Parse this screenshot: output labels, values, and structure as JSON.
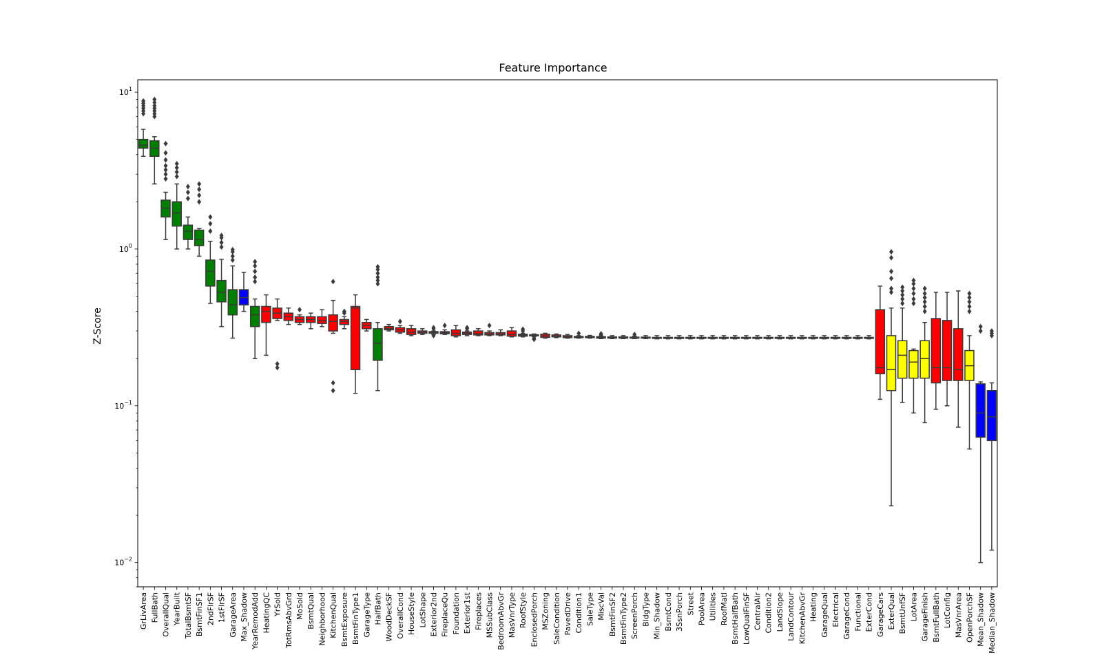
{
  "chart_data": {
    "type": "box",
    "title": "Feature Importance",
    "xlabel": "",
    "ylabel": "Z-Score",
    "yscale": "log",
    "ylim": [
      0.007,
      12
    ],
    "yticks": [
      {
        "value": 10,
        "base": "10",
        "exp": "1"
      },
      {
        "value": 1,
        "base": "10",
        "exp": "0"
      },
      {
        "value": 0.1,
        "base": "10",
        "exp": "−1"
      },
      {
        "value": 0.01,
        "base": "10",
        "exp": "−2"
      }
    ],
    "legend": "none",
    "colors": {
      "green": "#008000",
      "blue": "#0000ff",
      "red": "#ff0000",
      "yellow": "#ffff00"
    },
    "boxes": [
      {
        "name": "GrLivArea",
        "color": "green",
        "wlo": 3.9,
        "q1": 4.4,
        "med": 4.6,
        "q3": 5.0,
        "whi": 5.8,
        "fliers": [
          7.3,
          7.6,
          7.9,
          8.2,
          8.5,
          8.8
        ]
      },
      {
        "name": "FullBath",
        "color": "green",
        "wlo": 2.6,
        "q1": 3.9,
        "med": 4.4,
        "q3": 4.9,
        "whi": 5.2,
        "fliers": [
          7.0,
          7.3,
          7.6,
          7.9,
          8.2,
          8.6,
          9.0
        ]
      },
      {
        "name": "OverallQual",
        "color": "green",
        "wlo": 1.15,
        "q1": 1.6,
        "med": 1.82,
        "q3": 2.05,
        "whi": 2.3,
        "fliers": [
          2.8,
          3.0,
          3.2,
          3.4,
          3.7,
          4.1,
          4.7
        ]
      },
      {
        "name": "YearBuilt",
        "color": "green",
        "wlo": 1.0,
        "q1": 1.4,
        "med": 1.7,
        "q3": 2.0,
        "whi": 2.6,
        "fliers": [
          2.9,
          3.1,
          3.3,
          3.5
        ]
      },
      {
        "name": "TotalBsmtSF",
        "color": "green",
        "wlo": 1.0,
        "q1": 1.15,
        "med": 1.3,
        "q3": 1.42,
        "whi": 1.6,
        "fliers": [
          2.1,
          2.3,
          2.5
        ]
      },
      {
        "name": "BsmtFinSF1",
        "color": "green",
        "wlo": 0.9,
        "q1": 1.05,
        "med": 1.15,
        "q3": 1.32,
        "whi": 1.35,
        "fliers": [
          2.0,
          2.2,
          2.4,
          2.6
        ]
      },
      {
        "name": "2ndFlrSF",
        "color": "green",
        "wlo": 0.45,
        "q1": 0.58,
        "med": 0.72,
        "q3": 0.85,
        "whi": 1.12,
        "fliers": [
          1.3,
          1.45,
          1.6
        ]
      },
      {
        "name": "1stFlrSF",
        "color": "green",
        "wlo": 0.32,
        "q1": 0.46,
        "med": 0.53,
        "q3": 0.63,
        "whi": 0.86,
        "fliers": [
          1.03,
          1.1,
          1.18,
          1.22
        ]
      },
      {
        "name": "GarageArea",
        "color": "green",
        "wlo": 0.27,
        "q1": 0.38,
        "med": 0.44,
        "q3": 0.55,
        "whi": 0.78,
        "fliers": [
          0.85,
          0.9,
          0.96,
          0.99
        ]
      },
      {
        "name": "Max_Shadow",
        "color": "blue",
        "wlo": 0.4,
        "q1": 0.44,
        "med": 0.49,
        "q3": 0.55,
        "whi": 0.71,
        "fliers": []
      },
      {
        "name": "YearRemodAdd",
        "color": "green",
        "wlo": 0.2,
        "q1": 0.32,
        "med": 0.38,
        "q3": 0.43,
        "whi": 0.48,
        "fliers": [
          0.62,
          0.66,
          0.72,
          0.78,
          0.83
        ]
      },
      {
        "name": "HeatingQC",
        "color": "red",
        "wlo": 0.21,
        "q1": 0.34,
        "med": 0.4,
        "q3": 0.43,
        "whi": 0.51,
        "fliers": []
      },
      {
        "name": "YrSold",
        "color": "red",
        "wlo": 0.35,
        "q1": 0.36,
        "med": 0.39,
        "q3": 0.42,
        "whi": 0.48,
        "fliers": [
          0.175,
          0.185
        ]
      },
      {
        "name": "TotRmsAbvGrd",
        "color": "red",
        "wlo": 0.33,
        "q1": 0.35,
        "med": 0.37,
        "q3": 0.39,
        "whi": 0.42,
        "fliers": []
      },
      {
        "name": "MoSold",
        "color": "red",
        "wlo": 0.33,
        "q1": 0.34,
        "med": 0.355,
        "q3": 0.37,
        "whi": 0.38,
        "fliers": [
          0.41
        ]
      },
      {
        "name": "BsmtQual",
        "color": "red",
        "wlo": 0.31,
        "q1": 0.34,
        "med": 0.355,
        "q3": 0.37,
        "whi": 0.39,
        "fliers": []
      },
      {
        "name": "Neighborhood",
        "color": "red",
        "wlo": 0.32,
        "q1": 0.335,
        "med": 0.35,
        "q3": 0.37,
        "whi": 0.41,
        "fliers": []
      },
      {
        "name": "KitchenQual",
        "color": "red",
        "wlo": 0.29,
        "q1": 0.3,
        "med": 0.345,
        "q3": 0.38,
        "whi": 0.47,
        "fliers": [
          0.125,
          0.14,
          0.62
        ]
      },
      {
        "name": "BsmtExposure",
        "color": "red",
        "wlo": 0.31,
        "q1": 0.33,
        "med": 0.345,
        "q3": 0.355,
        "whi": 0.37,
        "fliers": [
          0.39,
          0.4
        ]
      },
      {
        "name": "BsmtFinType1",
        "color": "red",
        "wlo": 0.12,
        "q1": 0.17,
        "med": 0.42,
        "q3": 0.43,
        "whi": 0.51,
        "fliers": []
      },
      {
        "name": "GarageType",
        "color": "red",
        "wlo": 0.3,
        "q1": 0.31,
        "med": 0.325,
        "q3": 0.34,
        "whi": 0.355,
        "fliers": []
      },
      {
        "name": "HalfBath",
        "color": "green",
        "wlo": 0.125,
        "q1": 0.195,
        "med": 0.25,
        "q3": 0.31,
        "whi": 0.34,
        "fliers": [
          0.6,
          0.63,
          0.66,
          0.7,
          0.74,
          0.77
        ]
      },
      {
        "name": "WoodDeckSF",
        "color": "red",
        "wlo": 0.3,
        "q1": 0.305,
        "med": 0.31,
        "q3": 0.32,
        "whi": 0.33,
        "fliers": []
      },
      {
        "name": "OverallCond",
        "color": "red",
        "wlo": 0.29,
        "q1": 0.295,
        "med": 0.305,
        "q3": 0.315,
        "whi": 0.325,
        "fliers": [
          0.345
        ]
      },
      {
        "name": "HouseStyle",
        "color": "red",
        "wlo": 0.28,
        "q1": 0.285,
        "med": 0.295,
        "q3": 0.31,
        "whi": 0.325,
        "fliers": []
      },
      {
        "name": "LotShape",
        "color": "red",
        "wlo": 0.285,
        "q1": 0.29,
        "med": 0.295,
        "q3": 0.3,
        "whi": 0.31,
        "fliers": []
      },
      {
        "name": "Exterior2nd",
        "color": "red",
        "wlo": 0.285,
        "q1": 0.29,
        "med": 0.293,
        "q3": 0.297,
        "whi": 0.3,
        "fliers": [
          0.28,
          0.31,
          0.315
        ]
      },
      {
        "name": "FireplaceQu",
        "color": "red",
        "wlo": 0.285,
        "q1": 0.288,
        "med": 0.292,
        "q3": 0.297,
        "whi": 0.305,
        "fliers": [
          0.325
        ]
      },
      {
        "name": "Foundation",
        "color": "red",
        "wlo": 0.275,
        "q1": 0.28,
        "med": 0.29,
        "q3": 0.305,
        "whi": 0.325,
        "fliers": []
      },
      {
        "name": "Exterior1st",
        "color": "red",
        "wlo": 0.28,
        "q1": 0.285,
        "med": 0.29,
        "q3": 0.295,
        "whi": 0.3,
        "fliers": [
          0.31,
          0.315
        ]
      },
      {
        "name": "Fireplaces",
        "color": "red",
        "wlo": 0.28,
        "q1": 0.283,
        "med": 0.288,
        "q3": 0.3,
        "whi": 0.31,
        "fliers": []
      },
      {
        "name": "MSSubClass",
        "color": "red",
        "wlo": 0.28,
        "q1": 0.283,
        "med": 0.287,
        "q3": 0.293,
        "whi": 0.3,
        "fliers": [
          0.325
        ]
      },
      {
        "name": "BedroomAbvGr",
        "color": "red",
        "wlo": 0.28,
        "q1": 0.283,
        "med": 0.287,
        "q3": 0.293,
        "whi": 0.305,
        "fliers": []
      },
      {
        "name": "MasVnrType",
        "color": "red",
        "wlo": 0.275,
        "q1": 0.278,
        "med": 0.285,
        "q3": 0.3,
        "whi": 0.315,
        "fliers": []
      },
      {
        "name": "RoofStyle",
        "color": "red",
        "wlo": 0.275,
        "q1": 0.278,
        "med": 0.282,
        "q3": 0.286,
        "whi": 0.29,
        "fliers": [
          0.3,
          0.308
        ]
      },
      {
        "name": "EnclosedPorch",
        "color": "red",
        "wlo": 0.276,
        "q1": 0.279,
        "med": 0.281,
        "q3": 0.284,
        "whi": 0.287,
        "fliers": [
          0.265,
          0.27
        ]
      },
      {
        "name": "MSZoning",
        "color": "red",
        "wlo": 0.27,
        "q1": 0.273,
        "med": 0.279,
        "q3": 0.286,
        "whi": 0.29,
        "fliers": []
      },
      {
        "name": "SaleCondition",
        "color": "red",
        "wlo": 0.272,
        "q1": 0.275,
        "med": 0.278,
        "q3": 0.283,
        "whi": 0.287,
        "fliers": []
      },
      {
        "name": "PavedDrive",
        "color": "red",
        "wlo": 0.27,
        "q1": 0.272,
        "med": 0.275,
        "q3": 0.28,
        "whi": 0.285,
        "fliers": []
      },
      {
        "name": "Condition1",
        "color": "red",
        "wlo": 0.27,
        "q1": 0.272,
        "med": 0.274,
        "q3": 0.277,
        "whi": 0.28,
        "fliers": [
          0.29
        ]
      },
      {
        "name": "SaleType",
        "color": "red",
        "wlo": 0.27,
        "q1": 0.272,
        "med": 0.274,
        "q3": 0.277,
        "whi": 0.281,
        "fliers": []
      },
      {
        "name": "MiscVal",
        "color": "red",
        "wlo": 0.268,
        "q1": 0.27,
        "med": 0.273,
        "q3": 0.276,
        "whi": 0.279,
        "fliers": [
          0.284,
          0.288
        ]
      },
      {
        "name": "BsmtFinSF2",
        "color": "red",
        "wlo": 0.268,
        "q1": 0.27,
        "med": 0.272,
        "q3": 0.275,
        "whi": 0.28,
        "fliers": []
      },
      {
        "name": "BsmtFinType2",
        "color": "red",
        "wlo": 0.268,
        "q1": 0.27,
        "med": 0.272,
        "q3": 0.275,
        "whi": 0.28,
        "fliers": []
      },
      {
        "name": "ScreenPorch",
        "color": "red",
        "wlo": 0.268,
        "q1": 0.27,
        "med": 0.272,
        "q3": 0.274,
        "whi": 0.278,
        "fliers": [
          0.285
        ]
      },
      {
        "name": "BldgType",
        "color": "red",
        "wlo": 0.268,
        "q1": 0.27,
        "med": 0.272,
        "q3": 0.274,
        "whi": 0.28,
        "fliers": []
      },
      {
        "name": "Min_Shadow",
        "color": "blue",
        "wlo": 0.267,
        "q1": 0.269,
        "med": 0.271,
        "q3": 0.273,
        "whi": 0.28,
        "fliers": []
      },
      {
        "name": "BsmtCond",
        "color": "red",
        "wlo": 0.267,
        "q1": 0.269,
        "med": 0.271,
        "q3": 0.273,
        "whi": 0.28,
        "fliers": []
      },
      {
        "name": "3SsnPorch",
        "color": "red",
        "wlo": 0.267,
        "q1": 0.269,
        "med": 0.271,
        "q3": 0.273,
        "whi": 0.28,
        "fliers": []
      },
      {
        "name": "Street",
        "color": "red",
        "wlo": 0.267,
        "q1": 0.269,
        "med": 0.271,
        "q3": 0.273,
        "whi": 0.28,
        "fliers": []
      },
      {
        "name": "PoolArea",
        "color": "red",
        "wlo": 0.267,
        "q1": 0.269,
        "med": 0.271,
        "q3": 0.273,
        "whi": 0.28,
        "fliers": []
      },
      {
        "name": "Utilities",
        "color": "red",
        "wlo": 0.267,
        "q1": 0.269,
        "med": 0.271,
        "q3": 0.273,
        "whi": 0.28,
        "fliers": []
      },
      {
        "name": "RoofMatl",
        "color": "red",
        "wlo": 0.267,
        "q1": 0.269,
        "med": 0.271,
        "q3": 0.273,
        "whi": 0.28,
        "fliers": []
      },
      {
        "name": "BsmtHalfBath",
        "color": "red",
        "wlo": 0.267,
        "q1": 0.269,
        "med": 0.271,
        "q3": 0.273,
        "whi": 0.28,
        "fliers": []
      },
      {
        "name": "LowQualFinSF",
        "color": "red",
        "wlo": 0.267,
        "q1": 0.269,
        "med": 0.271,
        "q3": 0.273,
        "whi": 0.28,
        "fliers": []
      },
      {
        "name": "CentralAir",
        "color": "red",
        "wlo": 0.267,
        "q1": 0.269,
        "med": 0.271,
        "q3": 0.273,
        "whi": 0.28,
        "fliers": []
      },
      {
        "name": "Condition2",
        "color": "red",
        "wlo": 0.267,
        "q1": 0.269,
        "med": 0.271,
        "q3": 0.273,
        "whi": 0.28,
        "fliers": []
      },
      {
        "name": "LandSlope",
        "color": "red",
        "wlo": 0.267,
        "q1": 0.269,
        "med": 0.271,
        "q3": 0.273,
        "whi": 0.28,
        "fliers": []
      },
      {
        "name": "LandContour",
        "color": "red",
        "wlo": 0.267,
        "q1": 0.269,
        "med": 0.271,
        "q3": 0.273,
        "whi": 0.28,
        "fliers": []
      },
      {
        "name": "KitchenAbvGr",
        "color": "red",
        "wlo": 0.267,
        "q1": 0.269,
        "med": 0.271,
        "q3": 0.273,
        "whi": 0.28,
        "fliers": []
      },
      {
        "name": "Heating",
        "color": "red",
        "wlo": 0.267,
        "q1": 0.269,
        "med": 0.271,
        "q3": 0.273,
        "whi": 0.28,
        "fliers": []
      },
      {
        "name": "GarageQual",
        "color": "red",
        "wlo": 0.267,
        "q1": 0.269,
        "med": 0.271,
        "q3": 0.273,
        "whi": 0.28,
        "fliers": []
      },
      {
        "name": "Electrical",
        "color": "red",
        "wlo": 0.267,
        "q1": 0.269,
        "med": 0.271,
        "q3": 0.273,
        "whi": 0.28,
        "fliers": []
      },
      {
        "name": "GarageCond",
        "color": "red",
        "wlo": 0.267,
        "q1": 0.269,
        "med": 0.271,
        "q3": 0.273,
        "whi": 0.28,
        "fliers": []
      },
      {
        "name": "Functional",
        "color": "red",
        "wlo": 0.267,
        "q1": 0.269,
        "med": 0.271,
        "q3": 0.273,
        "whi": 0.28,
        "fliers": []
      },
      {
        "name": "ExterCond",
        "color": "red",
        "wlo": 0.267,
        "q1": 0.269,
        "med": 0.271,
        "q3": 0.273,
        "whi": 0.28,
        "fliers": []
      },
      {
        "name": "GarageCars",
        "color": "red",
        "wlo": 0.11,
        "q1": 0.16,
        "med": 0.175,
        "q3": 0.41,
        "whi": 0.58,
        "fliers": []
      },
      {
        "name": "ExterQual",
        "color": "yellow",
        "wlo": 0.023,
        "q1": 0.125,
        "med": 0.17,
        "q3": 0.28,
        "whi": 0.42,
        "fliers": [
          0.53,
          0.56,
          0.65,
          0.72,
          0.88,
          0.96
        ]
      },
      {
        "name": "BsmtUnfSF",
        "color": "yellow",
        "wlo": 0.105,
        "q1": 0.15,
        "med": 0.21,
        "q3": 0.26,
        "whi": 0.42,
        "fliers": [
          0.45,
          0.48,
          0.51,
          0.54,
          0.57
        ]
      },
      {
        "name": "LotArea",
        "color": "yellow",
        "wlo": 0.09,
        "q1": 0.15,
        "med": 0.19,
        "q3": 0.225,
        "whi": 0.23,
        "fliers": [
          0.45,
          0.48,
          0.52,
          0.56,
          0.6,
          0.63
        ]
      },
      {
        "name": "GarageFinish",
        "color": "yellow",
        "wlo": 0.078,
        "q1": 0.15,
        "med": 0.2,
        "q3": 0.26,
        "whi": 0.34,
        "fliers": [
          0.4,
          0.43,
          0.46,
          0.49,
          0.52,
          0.56
        ]
      },
      {
        "name": "BsmtFullBath",
        "color": "red",
        "wlo": 0.095,
        "q1": 0.14,
        "med": 0.175,
        "q3": 0.36,
        "whi": 0.53,
        "fliers": []
      },
      {
        "name": "LotConfig",
        "color": "red",
        "wlo": 0.1,
        "q1": 0.145,
        "med": 0.175,
        "q3": 0.35,
        "whi": 0.53,
        "fliers": []
      },
      {
        "name": "MasVnrArea",
        "color": "red",
        "wlo": 0.073,
        "q1": 0.145,
        "med": 0.17,
        "q3": 0.31,
        "whi": 0.54,
        "fliers": []
      },
      {
        "name": "OpenPorchSF",
        "color": "yellow",
        "wlo": 0.053,
        "q1": 0.145,
        "med": 0.18,
        "q3": 0.225,
        "whi": 0.28,
        "fliers": [
          0.4,
          0.43,
          0.46,
          0.49,
          0.52
        ]
      },
      {
        "name": "Mean_Shadow",
        "color": "blue",
        "wlo": 0.01,
        "q1": 0.063,
        "med": 0.09,
        "q3": 0.138,
        "whi": 0.142,
        "fliers": [
          0.3,
          0.32
        ]
      },
      {
        "name": "Median_Shadow",
        "color": "blue",
        "wlo": 0.012,
        "q1": 0.06,
        "med": 0.085,
        "q3": 0.125,
        "whi": 0.14,
        "fliers": [
          0.28,
          0.29,
          0.3
        ]
      }
    ]
  }
}
